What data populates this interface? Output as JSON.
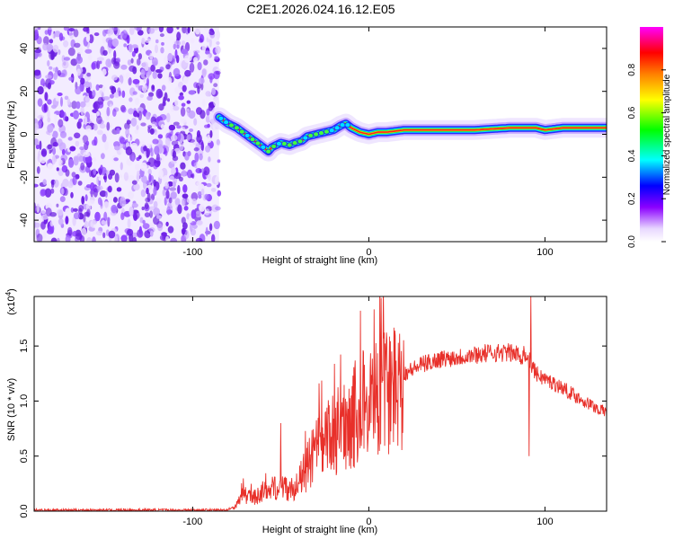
{
  "title": "C2E1.2026.024.16.12.E05",
  "chart_data": [
    {
      "type": "heatmap",
      "name": "spectrogram",
      "xlabel": "Height of straight line (km)",
      "ylabel": "Frequency (Hz)",
      "xlim": [
        -190,
        135
      ],
      "ylim": [
        -50,
        50
      ],
      "xticks": [
        -100,
        0,
        100
      ],
      "xtick_labels": [
        "-100",
        "0",
        "100"
      ],
      "yticks": [
        -40,
        -20,
        0,
        20,
        40
      ],
      "ytick_labels": [
        "-40",
        "-20",
        "0",
        "20",
        "40"
      ],
      "noise_region_x": [
        -190,
        -85
      ],
      "ridge": {
        "x": [
          -85,
          -80,
          -75,
          -70,
          -65,
          -60,
          -57,
          -55,
          -50,
          -45,
          -42,
          -38,
          -35,
          -30,
          -25,
          -20,
          -16,
          -13,
          -10,
          -5,
          0,
          5,
          10,
          20,
          40,
          60,
          80,
          88,
          95,
          100,
          110,
          120,
          135
        ],
        "y": [
          8,
          5,
          3,
          0,
          -3,
          -6,
          -8,
          -6,
          -4,
          -5,
          -4,
          -3,
          -1,
          0,
          1,
          2,
          4,
          5,
          3,
          1,
          0,
          1,
          1,
          2,
          2,
          2,
          3,
          3,
          3,
          2,
          3,
          3,
          3
        ]
      },
      "colorbar": {
        "label": "Normalized spectral amplitude",
        "ticks": [
          0.0,
          0.2,
          0.4,
          0.6,
          0.8
        ],
        "tick_labels": [
          "0.0",
          "0.2",
          "0.4",
          "0.6",
          "0.8"
        ],
        "range": [
          0,
          1
        ],
        "colors": [
          "#ffffff",
          "#e8d8ff",
          "#8b00ff",
          "#0000ff",
          "#00ffff",
          "#00ff00",
          "#ffff00",
          "#ff8000",
          "#ff0000",
          "#ff00ff"
        ]
      }
    },
    {
      "type": "line",
      "name": "snr",
      "xlabel": "Height of straight line (km)",
      "ylabel": "SNR (10 * v/v)",
      "multiplier": "(x10",
      "multiplier_exp": "4",
      "multiplier_close": ")",
      "xlim": [
        -190,
        135
      ],
      "ylim": [
        0,
        1.95
      ],
      "xticks": [
        -100,
        0,
        100
      ],
      "xtick_labels": [
        "-100",
        "0",
        "100"
      ],
      "yticks": [
        0.0,
        0.5,
        1.0,
        1.5
      ],
      "ytick_labels": [
        "0.0",
        "0.5",
        "1.0",
        "1.5"
      ],
      "color": "#e8302a",
      "envelope": {
        "x": [
          -190,
          -80,
          -75,
          -72,
          -65,
          -60,
          -55,
          -50,
          -45,
          -40,
          -35,
          -30,
          -20,
          -10,
          0,
          10,
          20,
          30,
          40,
          50,
          60,
          70,
          80,
          85,
          90,
          95,
          100,
          110,
          120,
          130,
          135
        ],
        "y": [
          0.01,
          0.01,
          0.05,
          0.15,
          0.12,
          0.18,
          0.2,
          0.25,
          0.18,
          0.25,
          0.4,
          0.55,
          0.7,
          0.85,
          1.0,
          1.1,
          1.25,
          1.33,
          1.38,
          1.4,
          1.42,
          1.44,
          1.44,
          1.42,
          1.4,
          1.25,
          1.2,
          1.12,
          1.02,
          0.93,
          0.9
        ]
      },
      "spikes": [
        {
          "x": -50,
          "y": 0.8
        },
        {
          "x": 13,
          "y": 1.45
        },
        {
          "x": 88,
          "y": 1.5
        },
        {
          "x": 92,
          "y": 1.95
        },
        {
          "x": 91,
          "y": 0.5
        }
      ]
    }
  ]
}
